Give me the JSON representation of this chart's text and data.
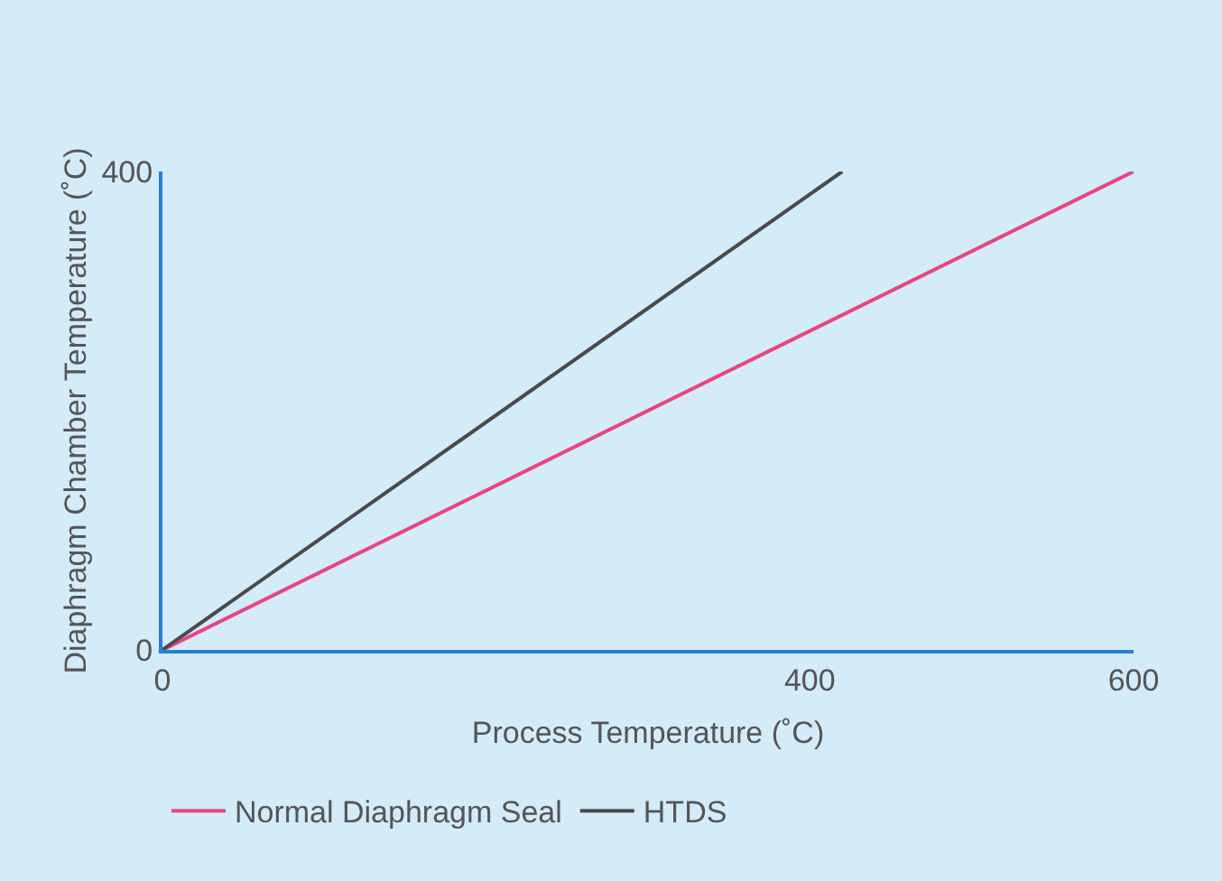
{
  "chart_data": {
    "type": "line",
    "xlabel": "Process Temperature (˚C)",
    "ylabel": "Diaphragm Chamber Temperature (˚C)",
    "series": [
      {
        "name": "Normal Diaphragm Seal",
        "color": "#e8457f",
        "x": [
          0,
          600
        ],
        "values": [
          0,
          400
        ]
      },
      {
        "name": "HTDS",
        "color": "#4a4a4a",
        "x": [
          0,
          420
        ],
        "values": [
          0,
          400
        ]
      }
    ],
    "xlim": [
      0,
      600
    ],
    "xticks": [
      0,
      400,
      600
    ],
    "ylim": [
      0,
      400
    ],
    "yticks": [
      0,
      400
    ],
    "grid": false,
    "legend": "bottom",
    "marker": "none",
    "line_style": "solid"
  }
}
